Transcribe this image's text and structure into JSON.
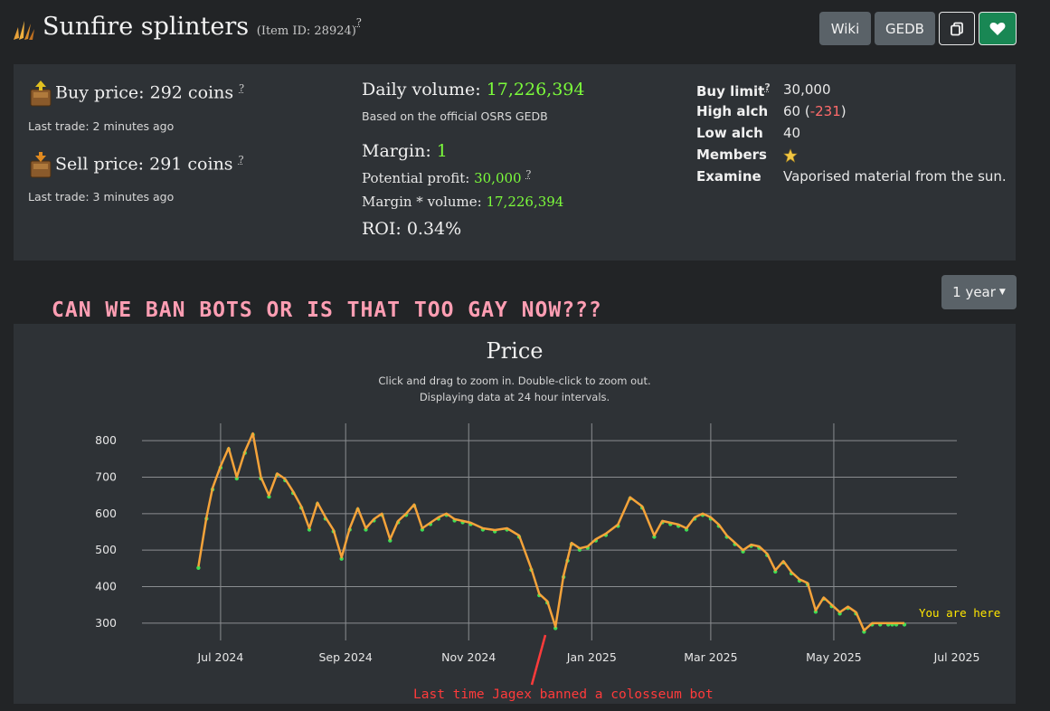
{
  "header": {
    "title": "Sunfire splinters",
    "item_id": "(Item ID: 28924)",
    "help": "?",
    "wiki_label": "Wiki",
    "gedb_label": "GEDB"
  },
  "prices": {
    "buy_label": "Buy price: 292 coins",
    "buy_last": "Last trade: 2 minutes ago",
    "sell_label": "Sell price: 291 coins",
    "sell_last": "Last trade: 3 minutes ago",
    "daily_volume_label": "Daily volume:",
    "daily_volume_value": "17,226,394",
    "volume_note": "Based on the official OSRS GEDB",
    "margin_label": "Margin:",
    "margin_value": "1",
    "profit_label": "Potential profit:",
    "profit_value": "30,000",
    "mv_label": "Margin * volume:",
    "mv_value": "17,226,394",
    "roi": "ROI: 0.34%"
  },
  "details": {
    "buy_limit_label": "Buy limit",
    "buy_limit_value": "30,000",
    "high_alch_label": "High alch",
    "high_alch_value": "60",
    "high_alch_diff": "-231",
    "low_alch_label": "Low alch",
    "low_alch_value": "40",
    "members_label": "Members",
    "examine_label": "Examine",
    "examine_value": "Vaporised material from the sun."
  },
  "range_label": "1 year",
  "banner": "CAN WE BAN BOTS OR IS THAT TOO GAY NOW???",
  "annotations": {
    "you_are_here": "You are here",
    "last_ban": "Last time Jagex banned a colosseum bot"
  },
  "colors": {
    "line": "#f5a33a",
    "markers": "#3ddc55",
    "grid": "#8a8d90",
    "banner": "#ff9eb3",
    "annotation_red": "#ff3b3b",
    "annotation_yellow": "#ffe600"
  },
  "chart_data": {
    "type": "line",
    "title": "Price",
    "subtitle1": "Click and drag to zoom in. Double-click to zoom out.",
    "subtitle2": "Displaying data at 24 hour intervals.",
    "x_ticks": [
      "Jul 2024",
      "Sep 2024",
      "Nov 2024",
      "Jan 2025",
      "Mar 2025",
      "May 2025",
      "Jul 2025"
    ],
    "y_ticks": [
      300,
      400,
      500,
      600,
      700,
      800
    ],
    "ylim": [
      265,
      835
    ],
    "grid": true,
    "series": [
      {
        "x": [
          "2024-06-20",
          "2024-06-24",
          "2024-06-27",
          "2024-07-01",
          "2024-07-05",
          "2024-07-09",
          "2024-07-13",
          "2024-07-17",
          "2024-07-21",
          "2024-07-25",
          "2024-07-29",
          "2024-08-02",
          "2024-08-06",
          "2024-08-10",
          "2024-08-14",
          "2024-08-18",
          "2024-08-22",
          "2024-08-26",
          "2024-08-30",
          "2024-09-03",
          "2024-09-07",
          "2024-09-11",
          "2024-09-15",
          "2024-09-19",
          "2024-09-23",
          "2024-09-27",
          "2024-10-01",
          "2024-10-05",
          "2024-10-09",
          "2024-10-13",
          "2024-10-17",
          "2024-10-21",
          "2024-10-25",
          "2024-10-29",
          "2024-11-02",
          "2024-11-08",
          "2024-11-14",
          "2024-11-20",
          "2024-11-26",
          "2024-12-02",
          "2024-12-06",
          "2024-12-10",
          "2024-12-14",
          "2024-12-18",
          "2024-12-20",
          "2024-12-22",
          "2024-12-26",
          "2024-12-30",
          "2025-01-03",
          "2025-01-08",
          "2025-01-14",
          "2025-01-20",
          "2025-01-26",
          "2025-02-01",
          "2025-02-05",
          "2025-02-09",
          "2025-02-13",
          "2025-02-17",
          "2025-02-21",
          "2025-02-25",
          "2025-03-01",
          "2025-03-05",
          "2025-03-09",
          "2025-03-13",
          "2025-03-17",
          "2025-03-21",
          "2025-03-25",
          "2025-03-29",
          "2025-04-02",
          "2025-04-06",
          "2025-04-10",
          "2025-04-14",
          "2025-04-18",
          "2025-04-22",
          "2025-04-26",
          "2025-04-30",
          "2025-05-04",
          "2025-05-08",
          "2025-05-12",
          "2025-05-16",
          "2025-05-20",
          "2025-05-24",
          "2025-05-28",
          "2025-05-30",
          "2025-06-01",
          "2025-06-05"
        ],
        "y": [
          455,
          590,
          670,
          730,
          780,
          700,
          770,
          820,
          700,
          650,
          710,
          695,
          660,
          620,
          560,
          630,
          590,
          555,
          480,
          560,
          615,
          560,
          585,
          600,
          530,
          580,
          600,
          625,
          560,
          575,
          590,
          600,
          585,
          580,
          575,
          560,
          555,
          560,
          540,
          450,
          380,
          360,
          290,
          430,
          475,
          520,
          505,
          510,
          530,
          545,
          570,
          645,
          620,
          540,
          580,
          575,
          570,
          560,
          590,
          600,
          590,
          570,
          540,
          520,
          500,
          515,
          510,
          490,
          445,
          470,
          440,
          420,
          410,
          335,
          370,
          350,
          330,
          345,
          330,
          280,
          300,
          300,
          300,
          300,
          300,
          300
        ]
      }
    ]
  }
}
